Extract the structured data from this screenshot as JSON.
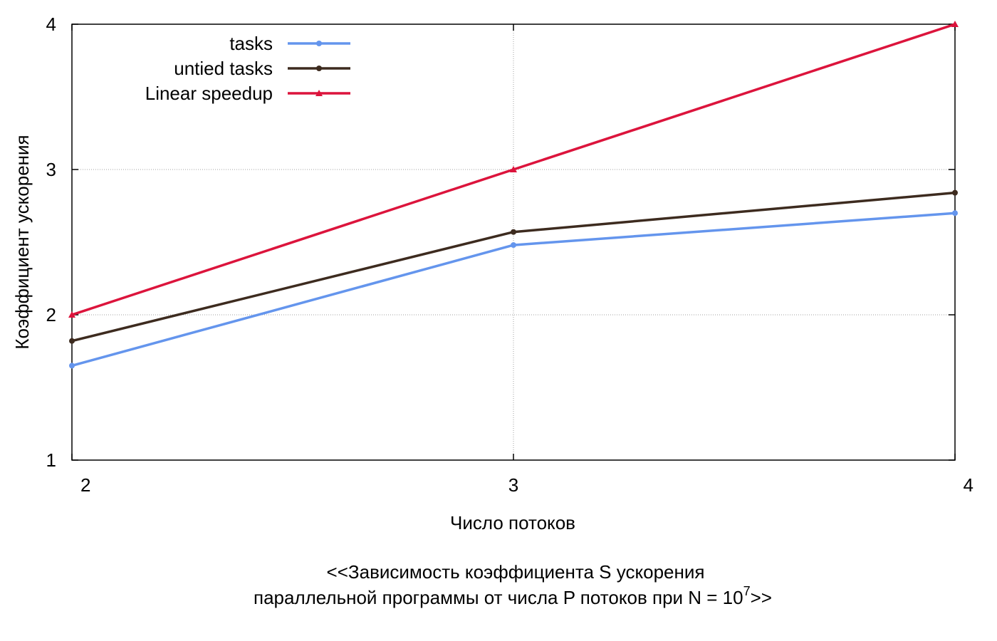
{
  "chart_data": {
    "type": "line",
    "title": "",
    "xlabel": "Число потоков",
    "ylabel": "Коэффициент ускорения",
    "x": [
      2,
      3,
      4
    ],
    "xlim": [
      2,
      4
    ],
    "ylim": [
      1,
      4
    ],
    "x_ticks": [
      2,
      3,
      4
    ],
    "y_ticks": [
      1,
      2,
      3,
      4
    ],
    "grid": true,
    "legend_position": "top-left",
    "series": [
      {
        "name": "tasks",
        "color": "#6495ed",
        "marker": "circle",
        "values": [
          1.65,
          2.48,
          2.7
        ]
      },
      {
        "name": "untied tasks",
        "color": "#3d2b1f",
        "marker": "circle",
        "values": [
          1.82,
          2.57,
          2.84
        ]
      },
      {
        "name": "Linear speedup",
        "color": "#dc143c",
        "marker": "triangle",
        "values": [
          2.0,
          3.0,
          4.0
        ]
      }
    ],
    "caption": {
      "line1": "<<Зависимость коэффициента S ускорения",
      "line2_prefix": "параллельной программы от числа P потоков при N = 10",
      "line2_superscript": "7",
      "line2_suffix": ">>"
    }
  }
}
